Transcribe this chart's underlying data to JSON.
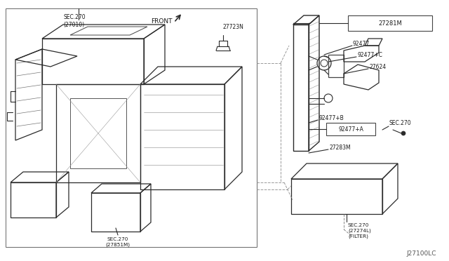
{
  "bg_color": "#ffffff",
  "fig_width": 6.4,
  "fig_height": 3.72,
  "dpi": 100,
  "labels": {
    "sec270_27010": "SEC.270\n(27010)",
    "sec270_27851m": "SEC.270\n(27851M)",
    "front": "FRONT",
    "27723n": "27723N",
    "27281m": "27281M",
    "92477": "92477",
    "92477c": "92477+C",
    "27624": "27624",
    "92477b": "92477+B",
    "92477a": "92477+A",
    "sec270_right": "SEC.270",
    "27283m": "27283M",
    "sec270_filter": "SEC.270\n(27274L)\n(FILTER)",
    "j27100lc": "J27100LC"
  },
  "line_color": "#2a2a2a",
  "text_color": "#1a1a1a",
  "dim_color": "#555555"
}
